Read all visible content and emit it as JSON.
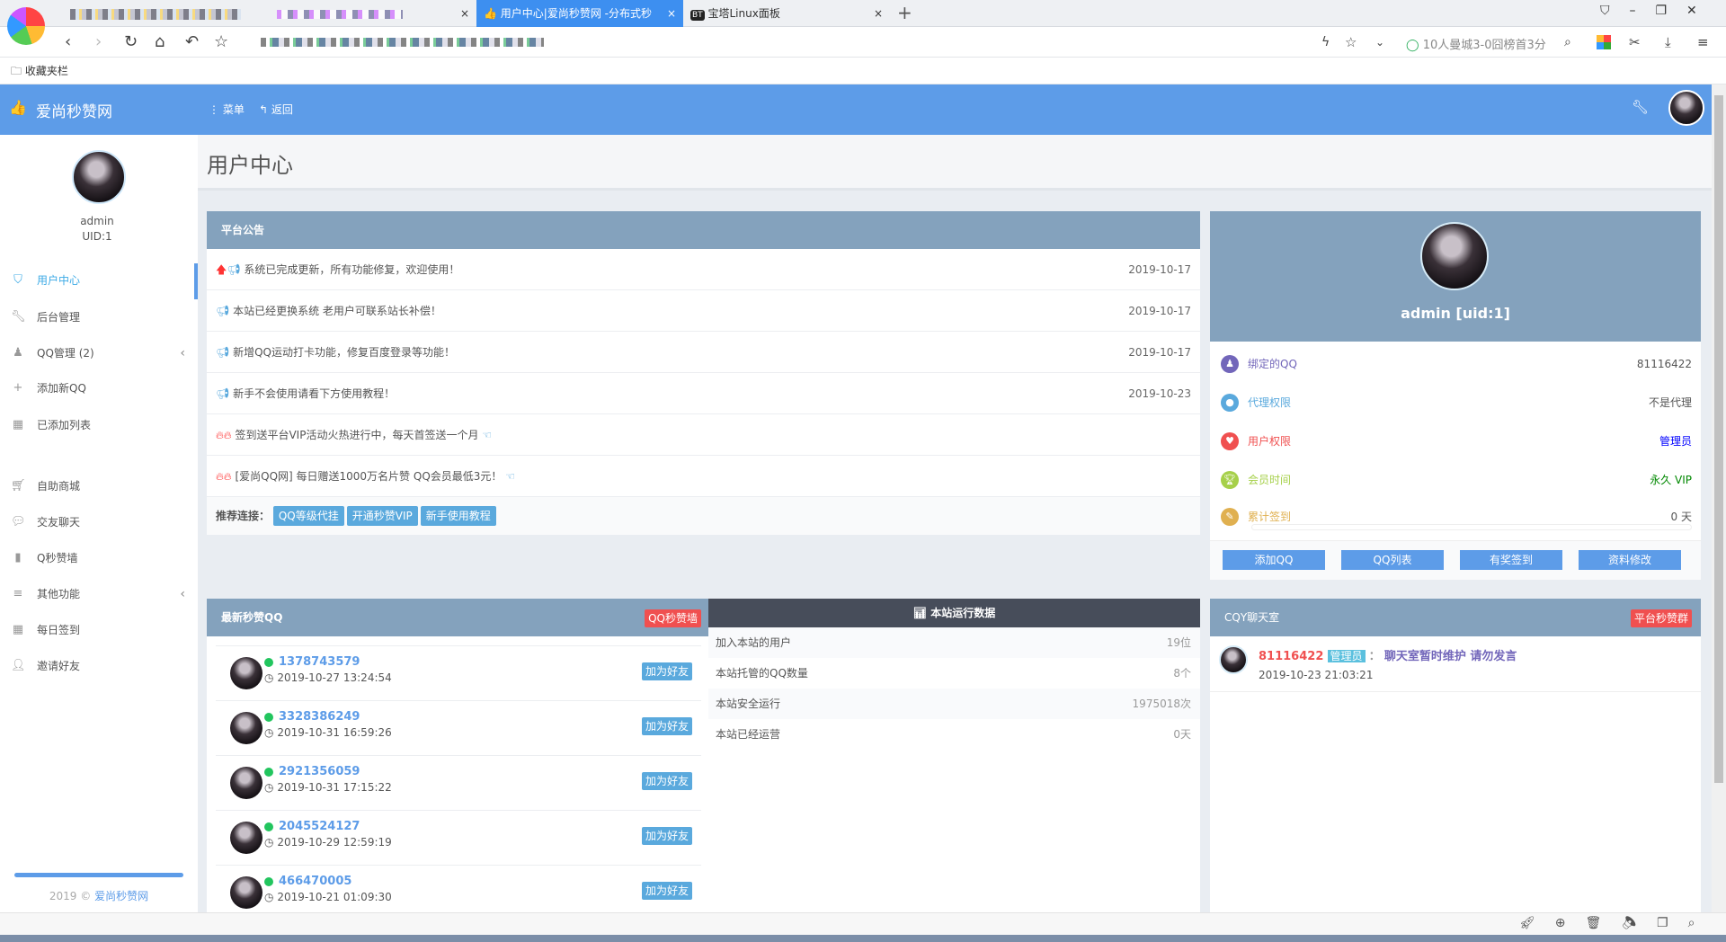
{
  "browser": {
    "tabs": [
      {
        "label": ""
      },
      {
        "label": ""
      },
      {
        "label": "用户中心|爱尚秒赞网 -分布式秒"
      },
      {
        "label": "宝塔Linux面板",
        "icon": "BT"
      }
    ],
    "news_ticker": "10人曼城3-0囧榜首3分",
    "bookmarks_label": "收藏夹栏"
  },
  "header": {
    "site_name": "爱尚秒赞网",
    "menu_label": "菜单",
    "back_label": "返回",
    "brand_color": "#5d9ce8"
  },
  "sidebar": {
    "username": "admin",
    "uid": "UID:1",
    "items": [
      {
        "label": "用户中心",
        "icon": "dashboard-icon",
        "active": true
      },
      {
        "label": "后台管理",
        "icon": "wrench-icon"
      },
      {
        "label": "QQ管理 (2)",
        "icon": "qq-icon",
        "chevron": true
      },
      {
        "label": "添加新QQ",
        "icon": "plus-icon"
      },
      {
        "label": "已添加列表",
        "icon": "table-icon"
      },
      {
        "label": "自助商城",
        "icon": "cart-icon"
      },
      {
        "label": "交友聊天",
        "icon": "comment-icon"
      },
      {
        "label": "Q秒赞墙",
        "icon": "bookmark-icon"
      },
      {
        "label": "其他功能",
        "icon": "list-icon",
        "chevron": true
      },
      {
        "label": "每日签到",
        "icon": "calendar-icon"
      },
      {
        "label": "邀请好友",
        "icon": "user-plus-icon"
      }
    ],
    "footer_year": "2019 ©",
    "footer_link": "爱尚秒赞网"
  },
  "page_title": "用户中心",
  "announcements": {
    "title": "平台公告",
    "items": [
      {
        "text": "系统已完成更新，所有功能修复，欢迎使用！",
        "date": "2019-10-17"
      },
      {
        "text": "本站已经更换系统 老用户可联系站长补偿！",
        "date": "2019-10-17"
      },
      {
        "text": "新增QQ运动打卡功能，修复百度登录等功能！",
        "date": "2019-10-17"
      },
      {
        "text": "新手不会使用请看下方使用教程！",
        "date": "2019-10-23"
      },
      {
        "text": "签到送平台VIP活动火热进行中，每天首签送一个月",
        "date": ""
      },
      {
        "text": "[爱尚QQ网] 每日赠送1000万名片赞 QQ会员最低3元！",
        "date": ""
      }
    ],
    "links_label": "推荐连接：",
    "links": [
      "QQ等级代挂",
      "开通秒赞VIP",
      "新手使用教程"
    ]
  },
  "profile": {
    "name": "admin [uid:1]",
    "rows": [
      {
        "label": "绑定的QQ",
        "value": "81116422",
        "color": "#7266ba"
      },
      {
        "label": "代理权限",
        "value": "不是代理",
        "color": "#5aa9dd"
      },
      {
        "label": "用户权限",
        "value": "管理员",
        "color": "#f05050"
      },
      {
        "label": "会员时间",
        "value": "永久 VIP",
        "color": "#a6d04a"
      },
      {
        "label": "累计签到",
        "value": "0 天",
        "color": "#e0b050"
      }
    ],
    "signin_progress": 0,
    "buttons": [
      "添加QQ",
      "QQ列表",
      "有奖签到",
      "资料修改"
    ]
  },
  "latest_qq": {
    "title": "最新秒赞QQ",
    "badge": "QQ秒赞墙",
    "add_label": "加为好友",
    "items": [
      {
        "qq": "1378743579",
        "time": "2019-10-27 13:24:54"
      },
      {
        "qq": "3328386249",
        "time": "2019-10-31 16:59:26"
      },
      {
        "qq": "2921356059",
        "time": "2019-10-31 17:15:22"
      },
      {
        "qq": "2045524127",
        "time": "2019-10-29 12:59:19"
      },
      {
        "qq": "466470005",
        "time": "2019-10-21 01:09:30"
      }
    ]
  },
  "stats": {
    "title": "本站运行数据",
    "rows": [
      {
        "label": "加入本站的用户",
        "value": "19位"
      },
      {
        "label": "本站托管的QQ数量",
        "value": "8个"
      },
      {
        "label": "本站安全运行",
        "value": "1975018次"
      },
      {
        "label": "本站已经运营",
        "value": "0天"
      }
    ]
  },
  "chat": {
    "title": "CQY聊天室",
    "badge": "平台秒赞群",
    "messages": [
      {
        "qq": "81116422",
        "role": "管理员",
        "sep": "：",
        "text": "聊天室暂时维护 请勿发言",
        "time": "2019-10-23 21:03:21"
      }
    ]
  }
}
